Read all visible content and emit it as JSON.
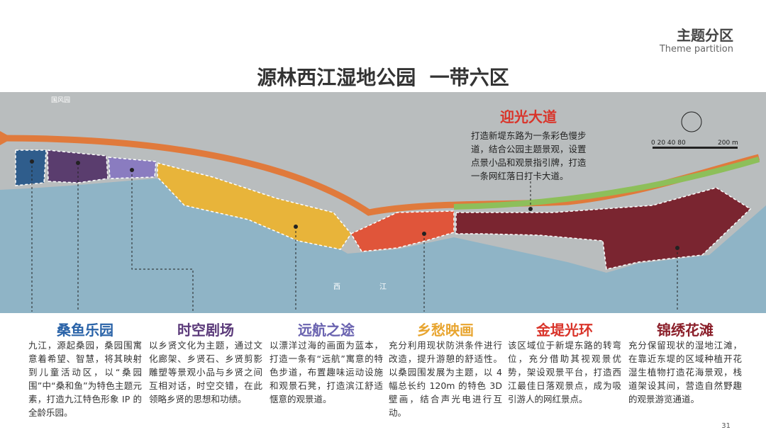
{
  "header": {
    "title": "主题分区",
    "subtitle": "Theme partition"
  },
  "title": "源林西江湿地公园  一带六区",
  "map": {
    "place_label": "国风园",
    "river_label_1": "西",
    "river_label_2": "江",
    "scale": {
      "ticks": "0 20 40 80",
      "end": "200 m"
    },
    "avenue": {
      "title": "迎光大道",
      "description": "打造新堤东路为一条彩色慢步道，结合公园主题景观，设置点景小品和观景指引牌，打造一条网红落日打卡大道。"
    }
  },
  "zones": [
    {
      "title": "桑鱼乐园",
      "description": "九江，源起桑园，桑园围寓意着希望、智慧，将其映射到儿童活动区，以“桑园围”中“桑和鱼”为特色主题元素，打造九江特色形象 IP 的全龄乐园。"
    },
    {
      "title": "时空剧场",
      "description": "以乡贤文化为主题，通过文化廊架、乡贤石、乡贤剪影雕塑等景观小品与乡贤之间互相对话，时空交错，在此领略乡贤的思想和功绩。"
    },
    {
      "title": "远航之途",
      "description": "以漂洋过海的画面为蓝本，打造一条有“远航”寓意的特色步道，布置趣味运动设施和观景石凳，打造滨江舒适惬意的观景道。"
    },
    {
      "title": "乡愁映画",
      "description": "充分利用现状防洪条件进行改造，提升游憩的舒适性。以桑园围发展为主题，以 4 幅总长约 120m 的特色 3D 壁画，结合声光电进行互动。"
    },
    {
      "title": "金堤光环",
      "description": "该区域位于新堤东路的转弯位，充分借助其视观景优势，架设观景平台，打造西江最佳日落观景点，成为吸引游人的网红景点。"
    },
    {
      "title": "锦绣花滩",
      "description": "充分保留现状的湿地江滩，在靠近东堤的区域种植开花湿生植物打造花海景观，栈道架设其间，营造自然野趣的观景游览通道。"
    }
  ],
  "page_number": "31"
}
